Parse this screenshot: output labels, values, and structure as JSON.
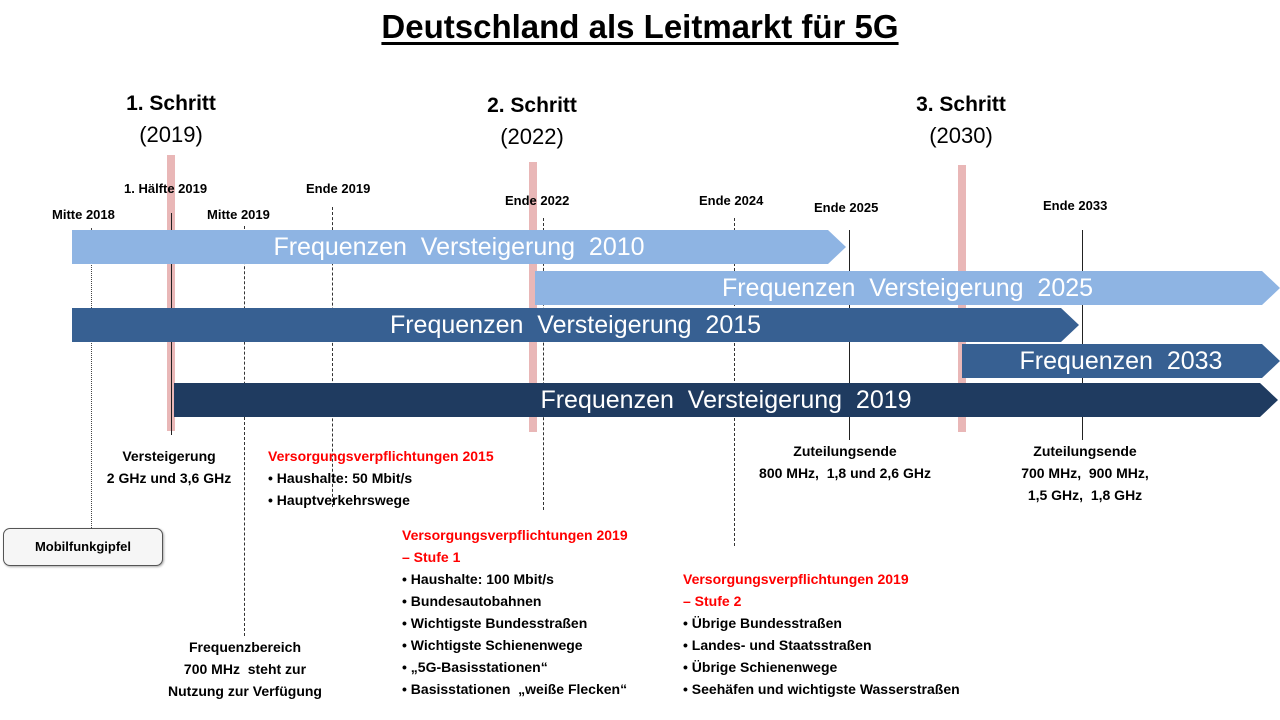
{
  "title": "Deutschland als Leitmarkt für 5G",
  "steps": [
    {
      "label": "1. Schritt",
      "year": "(2019)"
    },
    {
      "label": "2. Schritt",
      "year": "(2022)"
    },
    {
      "label": "3. Schritt",
      "year": "(2030)"
    }
  ],
  "dates": {
    "mitte2018": "Mitte 2018",
    "haelfte2019": "1. Hälfte 2019",
    "mitte2019": "Mitte 2019",
    "ende2019": "Ende 2019",
    "ende2022": "Ende 2022",
    "ende2024": "Ende 2024",
    "ende2025": "Ende 2025",
    "ende2033": "Ende 2033"
  },
  "bars": [
    {
      "label": "Frequenzen  Versteigerung  2010",
      "color": "#8eb4e3"
    },
    {
      "label": "Frequenzen  Versteigerung  2025",
      "color": "#8eb4e3"
    },
    {
      "label": "Frequenzen  Versteigerung  2015",
      "color": "#376092"
    },
    {
      "label": "Frequenzen  2033",
      "color": "#376092"
    },
    {
      "label": "Frequenzen  Versteigerung  2019",
      "color": "#1f3b60"
    }
  ],
  "notes": {
    "versteigerung": {
      "line1": "Versteigerung",
      "line2": "2 GHz und 3,6 GHz"
    },
    "mobilfunkgipfel": "Mobilfunkgipfel",
    "v2015": {
      "title": "Versorgungsverpflichtungen 2015",
      "items": [
        "Haushalte: 50 Mbit/s",
        "Hauptverkehrswege"
      ]
    },
    "v2019s1": {
      "title1": "Versorgungsverpflichtungen 2019",
      "title2": "– Stufe 1",
      "items": [
        "Haushalte: 100 Mbit/s",
        "Bundesautobahnen",
        "Wichtigste Bundesstraßen",
        "Wichtigste Schienenwege",
        "„5G-Basisstationen“",
        "Basisstationen  „weiße Flecken“"
      ]
    },
    "v2019s2": {
      "title1": "Versorgungsverpflichtungen 2019",
      "title2": "– Stufe 2",
      "items": [
        "Übrige Bundesstraßen",
        "Landes- und Staatsstraßen",
        "Übrige Schienenwege",
        "Seehäfen und wichtigste Wasserstraßen"
      ]
    },
    "frequenzbereich": {
      "line1": "Frequenzbereich",
      "line2": "700 MHz  steht zur",
      "line3": "Nutzung zur Verfügung"
    },
    "zuteilung2025": {
      "line1": "Zuteilungsende",
      "line2": "800 MHz,  1,8 und 2,6 GHz"
    },
    "zuteilung2033": {
      "line1": "Zuteilungsende",
      "line2": "700 MHz,  900 MHz,",
      "line3": "1,5 GHz,  1,8 GHz"
    }
  }
}
